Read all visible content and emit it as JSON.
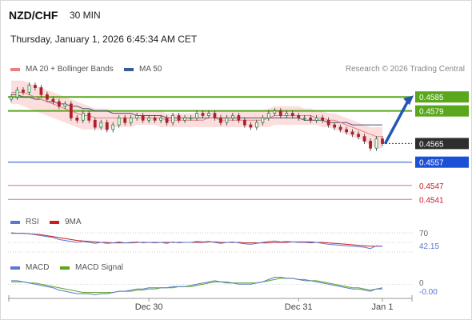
{
  "header": {
    "pair": "NZD/CHF",
    "interval": "30 MIN",
    "datetime": "Thursday, January 1, 2026 6:45:34 AM CET"
  },
  "legend": {
    "ma20_label": "MA 20 + Bollinger Bands",
    "ma50_label": "MA 50",
    "credit": "Research © 2026 Trading Central",
    "rsi_label": "RSI",
    "rsi_ma_label": "9MA",
    "macd_label": "MACD",
    "macd_signal_label": "MACD Signal"
  },
  "colors": {
    "candle_up": "#1f8a3a",
    "candle_down": "#b0202a",
    "bollinger_fill": "#fbd3d3",
    "ma20": "#e78080",
    "ma50": "#4a5578",
    "resistance": "#5aa61c",
    "pivot": "#1a4fd6",
    "support": "#e07070",
    "arrow": "#2356b5",
    "rsi": "#5a78d0",
    "rsi_ma": "#c81e1e",
    "macd": "#5a78d0",
    "macd_signal": "#5aa61c"
  },
  "chart_data": [
    {
      "type": "candlestick",
      "x_ticks": [
        "Dec 30",
        "Dec 31",
        "Jan 1"
      ],
      "ylim": [
        4538,
        4594
      ],
      "close_series": [
        4585,
        4588,
        4587,
        4590,
        4589,
        4586,
        4584,
        4583,
        4581,
        4582,
        4576,
        4575,
        4578,
        4575,
        4572,
        4574,
        4571,
        4573,
        4576,
        4574,
        4576,
        4577,
        4575,
        4576,
        4575,
        4576,
        4574,
        4577,
        4575,
        4576,
        4576,
        4578,
        4577,
        4578,
        4576,
        4574,
        4576,
        4577,
        4575,
        4573,
        4572,
        4574,
        4576,
        4578,
        4579,
        4577,
        4578,
        4577,
        4576,
        4576,
        4575,
        4576,
        4575,
        4573,
        4572,
        4571,
        4570,
        4569,
        4568,
        4566,
        4563,
        4567,
        4565
      ],
      "ma20_series": [
        4587,
        4587,
        4587,
        4586,
        4585,
        4584,
        4583,
        4582,
        4581,
        4580,
        4579,
        4578,
        4577,
        4577,
        4576,
        4576,
        4576,
        4576,
        4576,
        4576,
        4576,
        4576,
        4576,
        4576,
        4576,
        4576,
        4575,
        4575,
        4575,
        4575,
        4575,
        4575,
        4575,
        4576,
        4576,
        4575,
        4575,
        4575,
        4575,
        4575,
        4575,
        4575,
        4575,
        4576,
        4577,
        4577,
        4577,
        4577,
        4577,
        4577,
        4577,
        4576,
        4576,
        4575,
        4575,
        4574,
        4573,
        4572,
        4571,
        4570,
        4569,
        4568,
        4568
      ],
      "bb_upper_series": [
        4592,
        4592,
        4592,
        4591,
        4590,
        4589,
        4588,
        4587,
        4586,
        4585,
        4584,
        4583,
        4582,
        4581,
        4580,
        4580,
        4580,
        4579,
        4579,
        4579,
        4579,
        4579,
        4579,
        4579,
        4579,
        4579,
        4578,
        4578,
        4578,
        4578,
        4578,
        4578,
        4579,
        4579,
        4579,
        4579,
        4579,
        4579,
        4579,
        4579,
        4579,
        4579,
        4579,
        4580,
        4581,
        4581,
        4581,
        4581,
        4581,
        4580,
        4580,
        4579,
        4579,
        4578,
        4578,
        4577,
        4576,
        4575,
        4574,
        4573,
        4572,
        4572,
        4572
      ],
      "bb_lower_series": [
        4582,
        4582,
        4581,
        4580,
        4579,
        4578,
        4577,
        4576,
        4575,
        4574,
        4573,
        4572,
        4571,
        4571,
        4571,
        4571,
        4571,
        4572,
        4572,
        4572,
        4572,
        4573,
        4573,
        4573,
        4573,
        4572,
        4572,
        4572,
        4572,
        4572,
        4572,
        4572,
        4572,
        4572,
        4572,
        4572,
        4572,
        4572,
        4572,
        4572,
        4572,
        4572,
        4572,
        4572,
        4573,
        4573,
        4573,
        4573,
        4573,
        4573,
        4573,
        4573,
        4572,
        4572,
        4571,
        4570,
        4569,
        4568,
        4567,
        4566,
        4564,
        4563,
        4563
      ],
      "ma50_series": [
        4586,
        4586,
        4585,
        4585,
        4584,
        4584,
        4583,
        4583,
        4582,
        4582,
        4581,
        4581,
        4580,
        4580,
        4579,
        4579,
        4579,
        4578,
        4578,
        4578,
        4578,
        4577,
        4577,
        4577,
        4577,
        4577,
        4576,
        4576,
        4576,
        4576,
        4576,
        4576,
        4576,
        4576,
        4576,
        4576,
        4576,
        4576,
        4576,
        4576,
        4576,
        4576,
        4576,
        4576,
        4576,
        4576,
        4576,
        4576,
        4576,
        4575,
        4575,
        4575,
        4575,
        4574,
        4574,
        4574,
        4574,
        4573,
        4573,
        4573,
        4573,
        4573,
        4573
      ],
      "levels": [
        {
          "name": "resistance-2",
          "value": "0.4585",
          "y": 4585,
          "kind": "resistance"
        },
        {
          "name": "resistance-1",
          "value": "0.4579",
          "y": 4579,
          "kind": "resistance"
        },
        {
          "name": "last-price",
          "value": "0.4565",
          "y": 4565,
          "kind": "last"
        },
        {
          "name": "pivot",
          "value": "0.4557",
          "y": 4557,
          "kind": "pivot"
        },
        {
          "name": "support-1",
          "value": "0.4547",
          "y": 4547,
          "kind": "support"
        },
        {
          "name": "support-2",
          "value": "0.4541",
          "y": 4541,
          "kind": "support"
        }
      ],
      "arrow": {
        "from": 4565,
        "to": 4585,
        "direction": "up"
      }
    },
    {
      "type": "line",
      "name": "RSI",
      "ylim": [
        25,
        75
      ],
      "ref_level": "70",
      "value_label": "42.15",
      "rsi_series": [
        70,
        69,
        69,
        68,
        66,
        64,
        62,
        60,
        56,
        54,
        52,
        50,
        52,
        50,
        48,
        50,
        48,
        49,
        51,
        49,
        50,
        51,
        49,
        50,
        49,
        50,
        48,
        51,
        49,
        50,
        50,
        52,
        51,
        52,
        50,
        48,
        50,
        51,
        49,
        47,
        46,
        48,
        50,
        52,
        53,
        51,
        52,
        51,
        50,
        50,
        49,
        50,
        48,
        46,
        45,
        44,
        43,
        42,
        41,
        40,
        37,
        43,
        42
      ],
      "rsi_ma_series": [
        69,
        69,
        69,
        68,
        67,
        66,
        64,
        62,
        60,
        58,
        56,
        54,
        53,
        52,
        51,
        50,
        50,
        49,
        49,
        49,
        49,
        50,
        50,
        50,
        50,
        50,
        50,
        50,
        50,
        50,
        50,
        50,
        50,
        51,
        51,
        50,
        50,
        50,
        50,
        49,
        49,
        49,
        49,
        49,
        50,
        50,
        50,
        51,
        51,
        51,
        51,
        50,
        50,
        49,
        48,
        47,
        46,
        45,
        44,
        43,
        42,
        42,
        42
      ]
    },
    {
      "type": "line",
      "name": "MACD",
      "ref_level": "0",
      "value_label": "-0.00",
      "macd_series": [
        3,
        3,
        2,
        1,
        0,
        -1,
        -2,
        -3,
        -5,
        -6,
        -7,
        -8,
        -8,
        -8,
        -9,
        -8,
        -8,
        -7,
        -6,
        -6,
        -5,
        -4,
        -4,
        -3,
        -3,
        -3,
        -3,
        -2,
        -2,
        -2,
        -1,
        0,
        1,
        2,
        3,
        2,
        1,
        1,
        0,
        0,
        0,
        1,
        2,
        4,
        6,
        6,
        5,
        5,
        4,
        3,
        3,
        2,
        1,
        0,
        -1,
        -2,
        -3,
        -4,
        -4,
        -5,
        -6,
        -4,
        -3
      ],
      "signal_series": [
        2,
        2,
        2,
        1,
        1,
        0,
        -1,
        -2,
        -3,
        -4,
        -5,
        -6,
        -7,
        -7,
        -7,
        -7,
        -7,
        -7,
        -6,
        -6,
        -6,
        -5,
        -5,
        -4,
        -4,
        -3,
        -3,
        -3,
        -2,
        -2,
        -2,
        -1,
        0,
        1,
        2,
        2,
        2,
        1,
        1,
        1,
        1,
        1,
        2,
        3,
        4,
        5,
        5,
        5,
        4,
        4,
        3,
        3,
        2,
        1,
        0,
        -1,
        -2,
        -3,
        -3,
        -4,
        -5,
        -4,
        -4
      ]
    }
  ]
}
